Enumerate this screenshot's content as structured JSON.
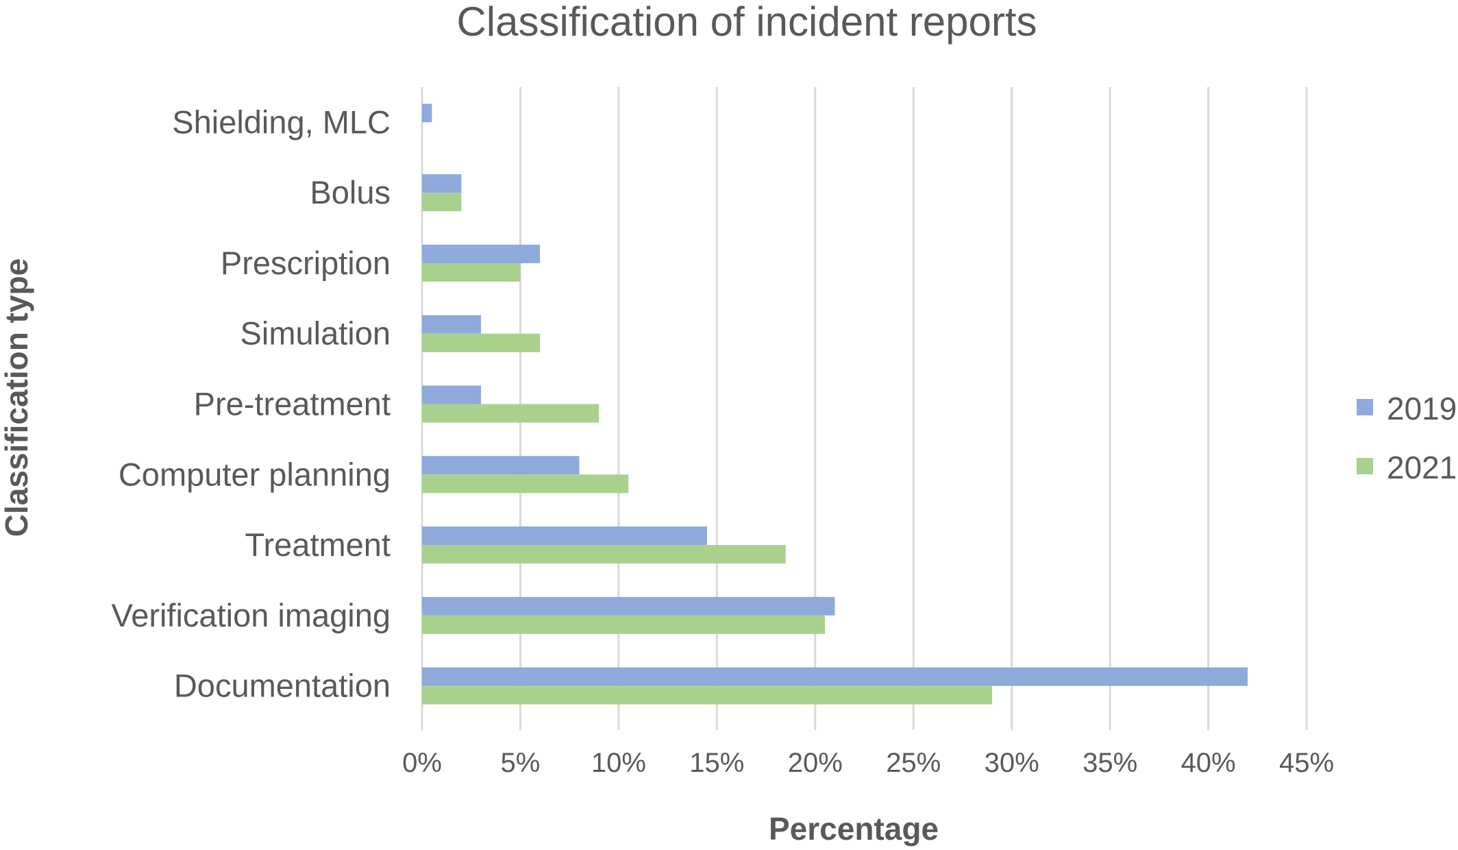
{
  "chart_data": {
    "type": "bar",
    "orientation": "horizontal",
    "title": "Classification of incident reports",
    "xlabel": "Percentage",
    "ylabel": "Classification type",
    "categories": [
      "Shielding, MLC",
      "Bolus",
      "Prescription",
      "Simulation",
      "Pre-treatment",
      "Computer planning",
      "Treatment",
      "Verification imaging",
      "Documentation"
    ],
    "series": [
      {
        "name": "2019",
        "color": "#8eaadb",
        "values": [
          0.5,
          2,
          6,
          3,
          3,
          8,
          14.5,
          21,
          42
        ]
      },
      {
        "name": "2021",
        "color": "#a9d18e",
        "values": [
          0,
          2,
          5,
          6,
          9,
          10.5,
          18.5,
          20.5,
          29
        ]
      }
    ],
    "xlim": [
      0,
      45
    ],
    "x_ticks": [
      "0%",
      "5%",
      "10%",
      "15%",
      "20%",
      "25%",
      "30%",
      "35%",
      "40%",
      "45%"
    ],
    "grid": "vertical",
    "legend_position": "right"
  }
}
